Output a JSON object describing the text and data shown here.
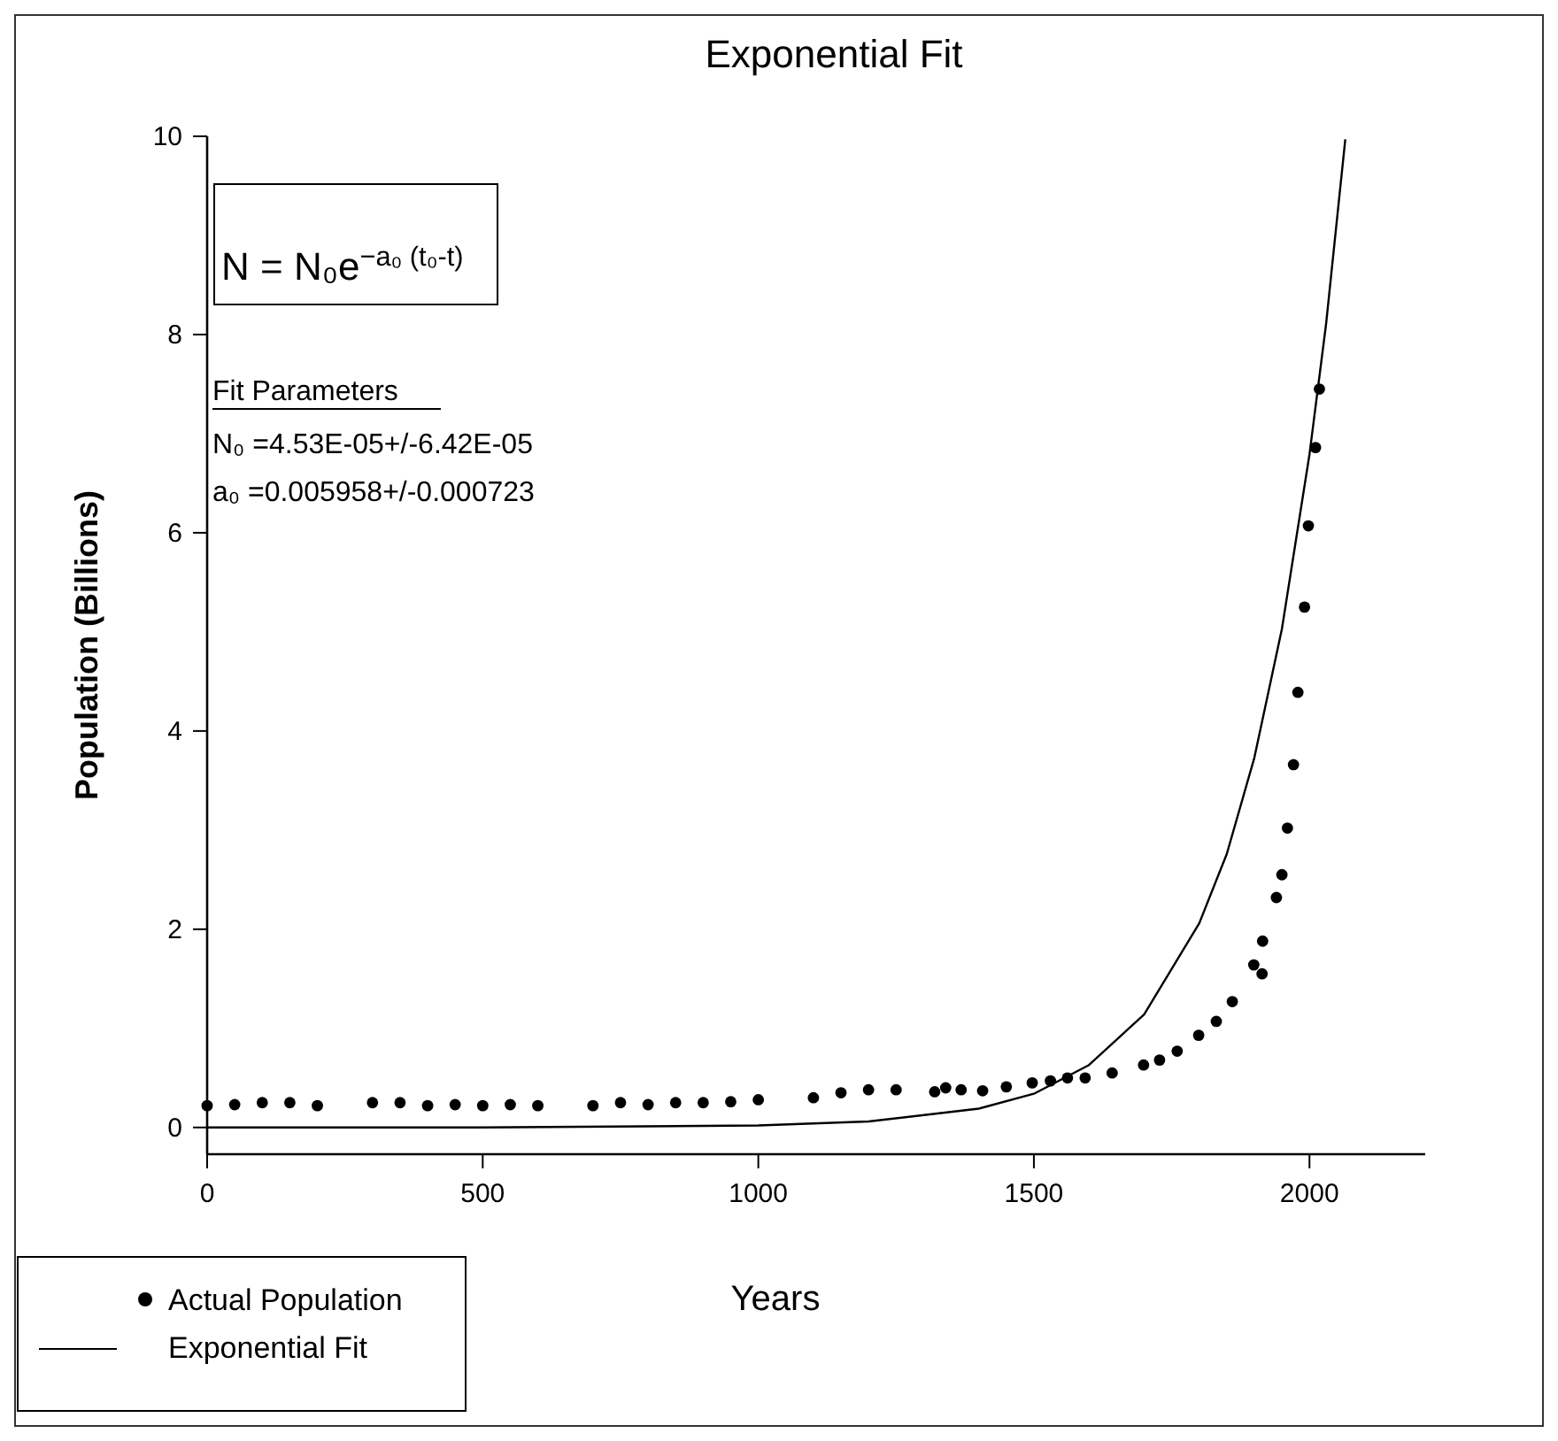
{
  "chart_data": {
    "type": "scatter",
    "title": "Exponential Fit",
    "xlabel": "Years",
    "ylabel": "Population (Billions)",
    "xlim": [
      0,
      2210
    ],
    "xticks": [
      0,
      500,
      1000,
      1500,
      2000
    ],
    "ylim": [
      -0.27,
      10
    ],
    "yticks": [
      0,
      2,
      4,
      6,
      8,
      10
    ],
    "grid": false,
    "legend": "bottom left",
    "annotations": [
      "N = N₀e$^{−a₀ (t₀-t)}$",
      "Fit Parameters",
      "N₀ =4.53E-05+/-6.42E-05",
      "a₀ =0.005958+/-0.000723"
    ],
    "series": [
      {
        "name": "Actual Population",
        "marker": "circle",
        "color": "#000000",
        "x": [
          0,
          50,
          100,
          150,
          200,
          300,
          350,
          400,
          450,
          500,
          550,
          600,
          700,
          750,
          800,
          850,
          900,
          950,
          1000,
          1100,
          1150,
          1200,
          1250,
          1320,
          1340,
          1368,
          1407,
          1450,
          1497,
          1530,
          1561,
          1593,
          1642,
          1699,
          1728,
          1760,
          1799,
          1831,
          1860,
          1899,
          1914,
          1915,
          1940,
          1950,
          1960,
          1971,
          1979,
          1991,
          1998,
          2011,
          2018
        ],
        "values": [
          0.22,
          0.23,
          0.25,
          0.25,
          0.22,
          0.25,
          0.25,
          0.22,
          0.23,
          0.22,
          0.23,
          0.22,
          0.22,
          0.25,
          0.23,
          0.25,
          0.25,
          0.26,
          0.28,
          0.3,
          0.35,
          0.38,
          0.38,
          0.36,
          0.4,
          0.38,
          0.37,
          0.41,
          0.45,
          0.47,
          0.5,
          0.5,
          0.55,
          0.63,
          0.68,
          0.77,
          0.93,
          1.07,
          1.27,
          1.64,
          1.55,
          1.88,
          2.32,
          2.55,
          3.02,
          3.66,
          4.39,
          5.25,
          6.07,
          6.86,
          7.45
        ]
      },
      {
        "name": "Exponential Fit",
        "type": "line",
        "marker": "none",
        "color": "#000000",
        "line_style": "solid",
        "x": [
          0,
          500,
          1000,
          1200,
          1400,
          1500,
          1600,
          1700,
          1800,
          1850,
          1900,
          1950,
          2000,
          2030,
          2065
        ],
        "values": [
          0,
          0,
          0.02,
          0.06,
          0.19,
          0.34,
          0.63,
          1.14,
          2.06,
          2.76,
          3.73,
          5.03,
          6.79,
          8.1,
          9.97
        ]
      }
    ]
  }
}
